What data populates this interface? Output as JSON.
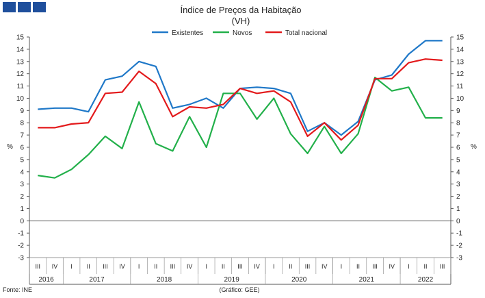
{
  "header": {
    "logo_name": "gee-logo"
  },
  "chart_data": {
    "type": "line",
    "title": "Índice de Preços da Habitação",
    "subtitle": "(VH)",
    "ylabel_left": "%",
    "ylabel_right": "%",
    "ylim": [
      -3,
      15
    ],
    "yticks": [
      -3,
      -2,
      -1,
      0,
      1,
      2,
      3,
      4,
      5,
      6,
      7,
      8,
      9,
      10,
      11,
      12,
      13,
      14,
      15
    ],
    "grid": false,
    "legend_position": "top",
    "categories": [
      "III",
      "IV",
      "I",
      "II",
      "III",
      "IV",
      "I",
      "II",
      "III",
      "IV",
      "I",
      "II",
      "III",
      "IV",
      "I",
      "II",
      "III",
      "IV",
      "I",
      "II",
      "III",
      "IV",
      "I",
      "II",
      "III"
    ],
    "years": [
      {
        "label": "2016",
        "start": 0,
        "count": 2
      },
      {
        "label": "2017",
        "start": 2,
        "count": 4
      },
      {
        "label": "2018",
        "start": 6,
        "count": 4
      },
      {
        "label": "2019",
        "start": 10,
        "count": 4
      },
      {
        "label": "2020",
        "start": 14,
        "count": 4
      },
      {
        "label": "2021",
        "start": 18,
        "count": 4
      },
      {
        "label": "2022",
        "start": 22,
        "count": 3
      }
    ],
    "series": [
      {
        "name": "Existentes",
        "color": "#1f78c8",
        "values": [
          9.1,
          9.2,
          9.2,
          8.9,
          11.5,
          11.8,
          13.0,
          12.6,
          9.2,
          9.5,
          10.0,
          9.2,
          10.8,
          10.9,
          10.8,
          10.4,
          7.3,
          8.0,
          7.0,
          8.1,
          11.5,
          11.9,
          13.6,
          14.7,
          14.7
        ]
      },
      {
        "name": "Novos",
        "color": "#22b04a",
        "values": [
          3.7,
          3.5,
          4.2,
          5.4,
          6.9,
          5.9,
          9.7,
          6.3,
          5.7,
          8.5,
          6.0,
          10.4,
          10.4,
          8.3,
          10.0,
          7.1,
          5.5,
          7.7,
          5.5,
          7.1,
          11.7,
          10.6,
          10.9,
          8.4,
          8.4
        ]
      },
      {
        "name": "Total nacional",
        "color": "#e31a1c",
        "values": [
          7.6,
          7.6,
          7.9,
          8.0,
          10.4,
          10.5,
          12.2,
          11.2,
          8.5,
          9.3,
          9.2,
          9.5,
          10.8,
          10.4,
          10.6,
          9.7,
          6.9,
          8.0,
          6.6,
          7.8,
          11.6,
          11.6,
          12.9,
          13.2,
          13.1
        ]
      }
    ],
    "source": "Fonte: INE",
    "credit": "(Gráfico: GEE)"
  }
}
